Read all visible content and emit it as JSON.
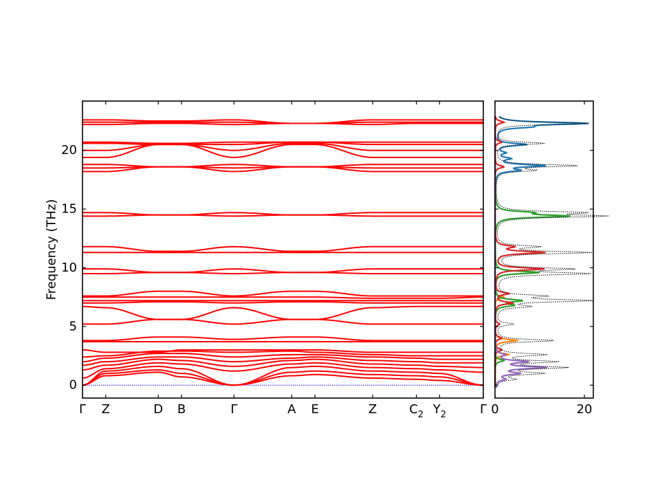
{
  "chart_data": [
    {
      "type": "line",
      "ylabel": "Frequency (THz)",
      "ylim": [
        -1.1,
        24.2
      ],
      "yticks": [
        0,
        5,
        10,
        15,
        20
      ],
      "xticks": [
        {
          "label": "Γ",
          "sub": "",
          "pos": 0.0
        },
        {
          "label": "Z",
          "sub": "",
          "pos": 0.058
        },
        {
          "label": "D",
          "sub": "",
          "pos": 0.189
        },
        {
          "label": "B",
          "sub": "",
          "pos": 0.247
        },
        {
          "label": "Γ",
          "sub": "",
          "pos": 0.378
        },
        {
          "label": "A",
          "sub": "",
          "pos": 0.522
        },
        {
          "label": "E",
          "sub": "",
          "pos": 0.58
        },
        {
          "label": "Z",
          "sub": "",
          "pos": 0.724
        },
        {
          "label": "C",
          "sub": "2",
          "pos": 0.833
        },
        {
          "label": "Y",
          "sub": "2",
          "pos": 0.891
        },
        {
          "label": "Γ",
          "sub": "",
          "pos": 1.0
        }
      ],
      "band_color": "#ff0000",
      "zero_line_color": "#0000ff",
      "bands": [
        [
          0.0,
          0.8,
          1.1,
          0.7,
          0.0,
          0.8,
          0.9,
          0.6,
          0.5,
          0.4,
          0.0
        ],
        [
          0.0,
          1.0,
          1.3,
          1.0,
          0.0,
          1.1,
          1.2,
          0.9,
          0.8,
          0.7,
          0.0
        ],
        [
          0.0,
          1.2,
          1.6,
          1.4,
          0.0,
          1.5,
          1.6,
          1.2,
          1.1,
          1.0,
          0.0
        ],
        [
          0.6,
          1.4,
          1.9,
          1.8,
          1.2,
          1.8,
          1.9,
          1.5,
          1.4,
          1.3,
          1.1
        ],
        [
          1.3,
          1.7,
          2.2,
          2.1,
          1.6,
          2.1,
          2.2,
          1.8,
          1.7,
          1.6,
          1.5
        ],
        [
          1.7,
          2.0,
          2.4,
          2.4,
          2.0,
          2.3,
          2.4,
          2.1,
          2.0,
          1.9,
          1.9
        ],
        [
          2.0,
          2.3,
          2.7,
          2.7,
          2.4,
          2.6,
          2.6,
          2.4,
          2.3,
          2.2,
          2.2
        ],
        [
          2.4,
          2.5,
          2.9,
          2.9,
          2.8,
          2.9,
          2.8,
          2.6,
          2.5,
          2.5,
          2.5
        ],
        [
          3.0,
          2.8,
          2.8,
          3.0,
          3.0,
          3.0,
          3.0,
          2.8,
          2.8,
          2.8,
          2.8
        ],
        [
          3.7,
          3.7,
          3.7,
          3.7,
          3.7,
          3.7,
          3.7,
          3.7,
          3.7,
          3.7,
          3.7
        ],
        [
          3.8,
          3.8,
          4.1,
          4.1,
          3.9,
          4.1,
          4.1,
          3.8,
          3.8,
          3.8,
          3.8
        ],
        [
          5.2,
          5.2,
          5.6,
          5.6,
          5.2,
          5.6,
          5.6,
          5.2,
          5.2,
          5.2,
          5.2
        ],
        [
          6.7,
          6.6,
          5.6,
          5.6,
          6.6,
          5.6,
          5.6,
          6.6,
          6.7,
          6.7,
          6.7
        ],
        [
          7.0,
          7.0,
          7.1,
          7.1,
          7.0,
          7.1,
          7.1,
          7.0,
          7.0,
          7.0,
          7.0
        ],
        [
          7.2,
          7.2,
          7.2,
          7.2,
          7.2,
          7.2,
          7.2,
          7.2,
          7.2,
          7.2,
          7.2
        ],
        [
          7.5,
          7.5,
          7.5,
          7.5,
          7.5,
          7.5,
          7.5,
          7.4,
          7.4,
          7.4,
          7.5
        ],
        [
          7.6,
          7.6,
          8.0,
          8.0,
          7.6,
          8.0,
          8.0,
          7.6,
          7.6,
          7.6,
          7.6
        ],
        [
          9.5,
          9.5,
          9.6,
          9.6,
          9.5,
          9.6,
          9.6,
          9.5,
          9.5,
          9.5,
          9.5
        ],
        [
          9.9,
          9.9,
          9.6,
          9.6,
          9.9,
          9.6,
          9.6,
          9.9,
          9.9,
          9.9,
          9.9
        ],
        [
          11.3,
          11.3,
          11.3,
          11.3,
          11.3,
          11.3,
          11.3,
          11.3,
          11.3,
          11.3,
          11.3
        ],
        [
          11.8,
          11.8,
          11.4,
          11.4,
          11.8,
          11.4,
          11.4,
          11.8,
          11.8,
          11.8,
          11.8
        ],
        [
          14.4,
          14.4,
          14.5,
          14.5,
          14.4,
          14.5,
          14.5,
          14.4,
          14.4,
          14.4,
          14.4
        ],
        [
          14.7,
          14.7,
          14.5,
          14.5,
          14.7,
          14.5,
          14.5,
          14.7,
          14.7,
          14.7,
          14.7
        ],
        [
          18.2,
          18.2,
          18.6,
          18.6,
          18.2,
          18.6,
          18.6,
          18.2,
          18.2,
          18.2,
          18.2
        ],
        [
          18.5,
          18.5,
          18.6,
          18.6,
          18.5,
          18.6,
          18.6,
          18.5,
          18.5,
          18.5,
          18.5
        ],
        [
          18.8,
          18.8,
          18.6,
          18.6,
          18.8,
          18.6,
          18.6,
          18.8,
          18.8,
          18.8,
          18.8
        ],
        [
          19.4,
          19.4,
          20.5,
          20.5,
          19.4,
          20.5,
          20.5,
          19.4,
          19.4,
          19.4,
          19.4
        ],
        [
          20.0,
          20.0,
          20.5,
          20.5,
          20.0,
          20.6,
          20.6,
          20.0,
          20.0,
          20.0,
          20.0
        ],
        [
          20.6,
          20.6,
          20.5,
          20.5,
          20.5,
          20.7,
          20.7,
          20.5,
          20.5,
          20.5,
          20.5
        ],
        [
          20.7,
          20.7,
          20.6,
          20.6,
          20.7,
          20.7,
          20.7,
          20.7,
          20.7,
          20.7,
          20.7
        ],
        [
          22.2,
          22.2,
          22.3,
          22.3,
          22.2,
          22.3,
          22.3,
          22.2,
          22.3,
          22.3,
          22.3
        ],
        [
          22.4,
          22.4,
          22.4,
          22.4,
          22.4,
          22.3,
          22.3,
          22.4,
          22.4,
          22.4,
          22.4
        ],
        [
          22.6,
          22.6,
          22.5,
          22.5,
          22.6,
          22.3,
          22.3,
          22.6,
          22.6,
          22.6,
          22.6
        ]
      ]
    },
    {
      "type": "line",
      "xlim": [
        0,
        22
      ],
      "xticks": [
        0,
        20
      ],
      "ylim": [
        -1.1,
        24.2
      ],
      "series": [
        {
          "color": "#1f77b4",
          "peaks": [
            [
              22.3,
              20
            ],
            [
              22.0,
              6
            ],
            [
              20.5,
              7
            ],
            [
              19.8,
              2
            ],
            [
              19.3,
              3
            ],
            [
              18.7,
              11
            ],
            [
              18.3,
              5
            ]
          ]
        },
        {
          "color": "#ff7f0e",
          "peaks": [
            [
              3.8,
              5
            ],
            [
              2.6,
              3
            ],
            [
              7.5,
              2
            ]
          ]
        },
        {
          "color": "#2ca02c",
          "peaks": [
            [
              14.4,
              16
            ],
            [
              14.7,
              7
            ],
            [
              9.6,
              10
            ],
            [
              7.2,
              6
            ],
            [
              6.8,
              4
            ],
            [
              2.1,
              2
            ]
          ]
        },
        {
          "color": "#d62728",
          "peaks": [
            [
              22.4,
              2
            ],
            [
              20.7,
              1.5
            ],
            [
              18.6,
              2
            ],
            [
              11.3,
              11
            ],
            [
              11.8,
              4
            ],
            [
              9.9,
              11
            ],
            [
              7.8,
              3
            ],
            [
              7.0,
              4
            ],
            [
              5.2,
              1
            ],
            [
              4.0,
              1.5
            ],
            [
              3.0,
              1.5
            ]
          ]
        },
        {
          "color": "#9467bd",
          "peaks": [
            [
              1.5,
              11
            ],
            [
              2.0,
              7
            ],
            [
              1.0,
              5
            ],
            [
              0.5,
              2
            ],
            [
              2.6,
              2
            ]
          ]
        },
        {
          "color": "#000000",
          "dashed": true,
          "peaks": [
            [
              22.3,
              21
            ],
            [
              20.6,
              11
            ],
            [
              18.7,
              18
            ],
            [
              18.3,
              8
            ],
            [
              14.4,
              23
            ],
            [
              14.7,
              18
            ],
            [
              11.8,
              9
            ],
            [
              11.3,
              21
            ],
            [
              9.9,
              16
            ],
            [
              9.5,
              20
            ],
            [
              7.2,
              21
            ],
            [
              7.6,
              10
            ],
            [
              6.7,
              7
            ],
            [
              5.2,
              4
            ],
            [
              3.8,
              13
            ],
            [
              2.6,
              11
            ],
            [
              2.0,
              13
            ],
            [
              1.5,
              15
            ],
            [
              1.0,
              10
            ],
            [
              0.5,
              4
            ]
          ]
        }
      ]
    }
  ]
}
